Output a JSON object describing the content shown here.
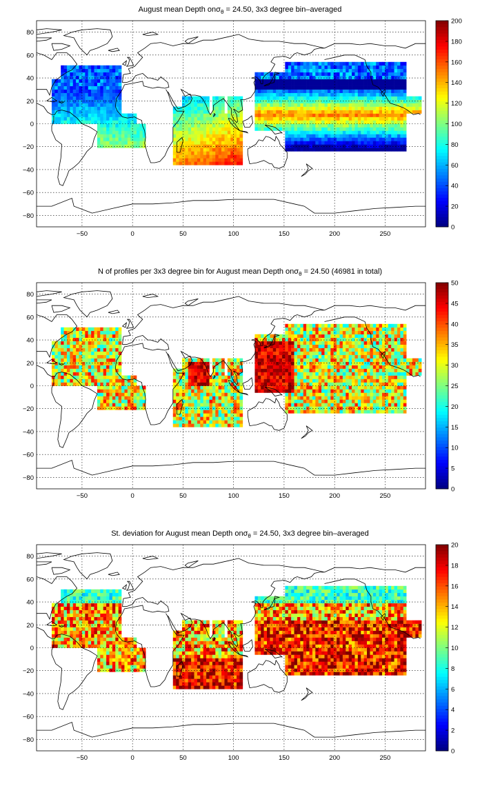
{
  "chart_data": [
    {
      "type": "heatmap",
      "title_pre": "August mean Depth on",
      "title_sym": "σ",
      "title_sub": "θ",
      "title_post": " = 24.50, 3x3 degree bin–averaged",
      "xlim": [
        -95,
        290
      ],
      "ylim": [
        -90,
        90
      ],
      "xticks": [
        -50,
        0,
        50,
        100,
        150,
        200,
        250
      ],
      "yticks": [
        80,
        60,
        40,
        20,
        0,
        -20,
        -40,
        -60,
        -80
      ],
      "colorbar": {
        "min": 0,
        "max": 200,
        "ticks": [
          0,
          20,
          40,
          60,
          80,
          100,
          120,
          140,
          160,
          180,
          200
        ]
      },
      "grid": true,
      "colormap": "jet",
      "variable": "depth"
    },
    {
      "type": "heatmap",
      "title_pre": "N of profiles per 3x3 degree bin for August mean Depth on",
      "title_sym": "σ",
      "title_sub": "θ",
      "title_post": " = 24.50 (46981 in total)",
      "xlim": [
        -95,
        290
      ],
      "ylim": [
        -90,
        90
      ],
      "xticks": [
        -50,
        0,
        50,
        100,
        150,
        200,
        250
      ],
      "yticks": [
        80,
        60,
        40,
        20,
        0,
        -20,
        -40,
        -60,
        -80
      ],
      "colorbar": {
        "min": 0,
        "max": 50,
        "ticks": [
          0,
          5,
          10,
          15,
          20,
          25,
          30,
          35,
          40,
          45,
          50
        ]
      },
      "grid": true,
      "colormap": "jet",
      "variable": "count"
    },
    {
      "type": "heatmap",
      "title_pre": "St. deviation for August mean Depth on",
      "title_sym": "σ",
      "title_sub": "θ",
      "title_post": " = 24.50, 3x3 degree bin–averaged",
      "xlim": [
        -95,
        290
      ],
      "ylim": [
        -90,
        90
      ],
      "xticks": [
        -50,
        0,
        50,
        100,
        150,
        200,
        250
      ],
      "yticks": [
        80,
        60,
        40,
        20,
        0,
        -20,
        -40,
        -60,
        -80
      ],
      "colorbar": {
        "min": 0,
        "max": 20,
        "ticks": [
          0,
          2,
          4,
          6,
          8,
          10,
          12,
          14,
          16,
          18,
          20
        ]
      },
      "grid": true,
      "colormap": "jet",
      "variable": "stdev"
    }
  ]
}
